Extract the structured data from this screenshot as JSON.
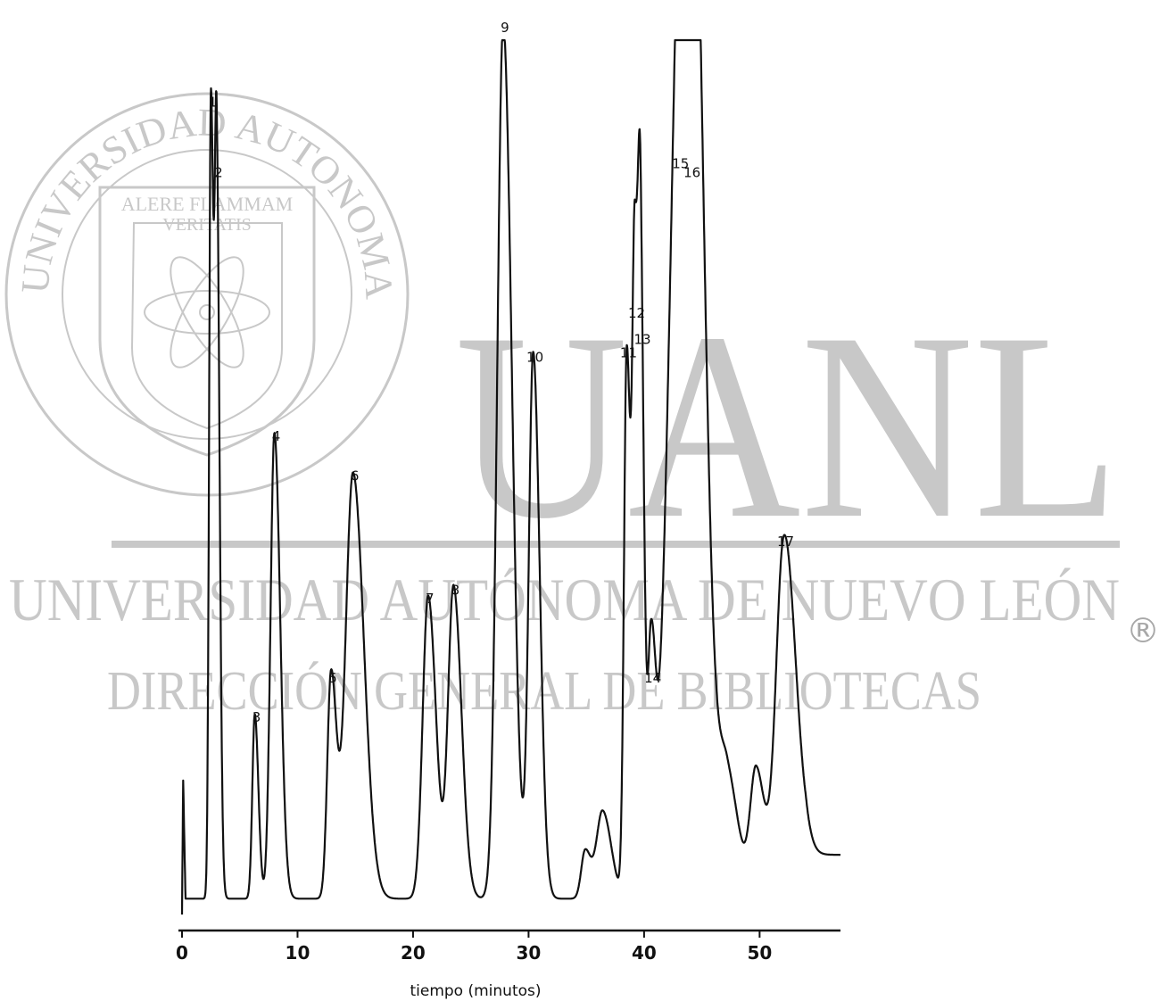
{
  "watermark": {
    "seal_ring_text": "UNIVERSIDAD AUTONOMA DE NUEVO LEON",
    "seal_motto_line1": "ALERE FLAMMAM",
    "seal_motto_line2": "VERITATIS",
    "big_text": "UANL",
    "line1": "UNIVERSIDAD AUTÓNOMA DE NUEVO LEÓN",
    "line2": "DIRECCIÓN GENERAL DE BIBLIOTECAS",
    "registered_mark": "®",
    "color": "#c8c8c8"
  },
  "chart_data": {
    "type": "line",
    "title": "",
    "xlabel": "tiempo (minutos)",
    "ylabel": "",
    "xlim": [
      0,
      57
    ],
    "ylim": [
      0,
      1000
    ],
    "x_ticks": [
      0,
      10,
      20,
      30,
      40,
      50
    ],
    "x_tick_labels": [
      "0",
      "10",
      "20",
      "30",
      "40",
      "50"
    ],
    "grid": false,
    "line_color": "#111111",
    "baseline": 5,
    "start_artifact": {
      "x": 0.1,
      "height": 155,
      "drop_at": 0.3,
      "level": 18
    },
    "tail_level": 55,
    "peaks": [
      {
        "label": "1",
        "x": 2.5,
        "height": 910,
        "width": 0.18
      },
      {
        "label": "2",
        "x": 3.0,
        "height": 830,
        "width": 0.2
      },
      {
        "label": "3",
        "x": 6.3,
        "height": 210,
        "width": 0.25
      },
      {
        "label": "4",
        "x": 8.0,
        "height": 530,
        "width": 0.4
      },
      {
        "label": "5",
        "x": 12.9,
        "height": 255,
        "width": 0.38
      },
      {
        "label": "6",
        "x": 14.8,
        "height": 485,
        "width": 0.75
      },
      {
        "label": "7",
        "x": 21.3,
        "height": 345,
        "width": 0.55
      },
      {
        "label": "8",
        "x": 23.5,
        "height": 355,
        "width": 0.55
      },
      {
        "label": "9",
        "x": 27.8,
        "height": 995,
        "width": 0.6
      },
      {
        "label": "10",
        "x": 30.4,
        "height": 620,
        "width": 0.45
      },
      {
        "label": "",
        "x": 34.9,
        "height": 55,
        "width": 0.4
      },
      {
        "label": "",
        "x": 36.4,
        "height": 100,
        "width": 0.6
      },
      {
        "label": "11",
        "x": 38.5,
        "height": 625,
        "width": 0.28
      },
      {
        "label": "12",
        "x": 39.2,
        "height": 670,
        "width": 0.25
      },
      {
        "label": "13",
        "x": 39.7,
        "height": 640,
        "width": 0.25
      },
      {
        "label": "14",
        "x": 40.6,
        "height": 255,
        "width": 0.3
      },
      {
        "label": "15",
        "x": 43.0,
        "height": 840,
        "width": 1.2
      },
      {
        "label": "16",
        "x": 44.0,
        "height": 830,
        "width": 0.9
      },
      {
        "label": "",
        "x": 47.2,
        "height": 130,
        "width": 0.8
      },
      {
        "label": "",
        "x": 49.7,
        "height": 145,
        "width": 0.6
      },
      {
        "label": "17",
        "x": 52.1,
        "height": 410,
        "width": 0.8
      }
    ]
  }
}
